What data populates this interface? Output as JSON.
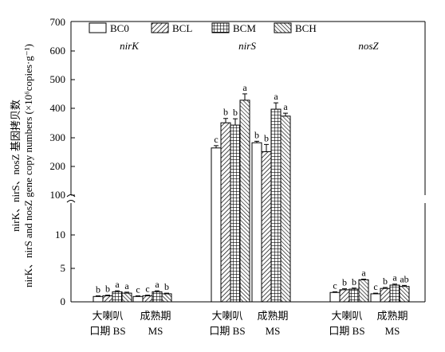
{
  "chart_data": {
    "type": "bar",
    "ylabel_lines": [
      "nirK、nirS、nosZ 基因拷贝数",
      "nirK、nirS and nosZ gene copy numbers (×10⁶copies·g⁻¹)"
    ],
    "y_ticks_upper": [
      "100",
      "200",
      "300",
      "400",
      "500",
      "600",
      "700"
    ],
    "y_ticks_lower": [
      "0",
      "5",
      "10"
    ],
    "y_scale_note": "broken axis: 0-15 lower segment, 100-700 upper segment",
    "legend": [
      "BC0",
      "BCL",
      "BCM",
      "BCH"
    ],
    "legend_placement": "top",
    "genes": [
      {
        "name": "nirK",
        "periods": [
          {
            "label_cn_1": "大喇叭",
            "label_cn_2": "口期 BS",
            "values": [
              0.8,
              0.9,
              1.5,
              1.3
            ],
            "errors": [
              0.1,
              0.1,
              0.15,
              0.15
            ],
            "letters": [
              "b",
              "b",
              "a",
              "a"
            ]
          },
          {
            "label_cn_1": "成熟期",
            "label_cn_2": "MS",
            "values": [
              0.8,
              0.9,
              1.5,
              1.2
            ],
            "errors": [
              0.1,
              0.1,
              0.15,
              0.1
            ],
            "letters": [
              "c",
              "c",
              "a",
              "b"
            ]
          }
        ]
      },
      {
        "name": "nirS",
        "periods": [
          {
            "label_cn_1": "大喇叭",
            "label_cn_2": "口期 BS",
            "values": [
              263,
              350,
              342,
              428
            ],
            "errors": [
              8,
              15,
              22,
              22
            ],
            "letters": [
              "c",
              "b",
              "b",
              "a"
            ]
          },
          {
            "label_cn_1": "成熟期",
            "label_cn_2": "MS",
            "values": [
              281,
              250,
              397,
              373
            ],
            "errors": [
              5,
              25,
              22,
              10
            ],
            "letters": [
              "b",
              "b",
              "a",
              "a"
            ]
          }
        ]
      },
      {
        "name": "nosZ",
        "periods": [
          {
            "label_cn_1": "大喇叭",
            "label_cn_2": "口期 BS",
            "values": [
              1.4,
              1.8,
              1.9,
              3.3
            ],
            "errors": [
              0.1,
              0.15,
              0.15,
              0.1
            ],
            "letters": [
              "c",
              "b",
              "b",
              "a"
            ]
          },
          {
            "label_cn_1": "成熟期",
            "label_cn_2": "MS",
            "values": [
              1.2,
              2.0,
              2.5,
              2.3
            ],
            "errors": [
              0.1,
              0.15,
              0.15,
              0.15
            ],
            "letters": [
              "c",
              "b",
              "a",
              "ab"
            ]
          }
        ]
      }
    ],
    "colors": {
      "axis": "#000000",
      "bar_fill": "#ffffff",
      "pattern": "#000000"
    }
  }
}
